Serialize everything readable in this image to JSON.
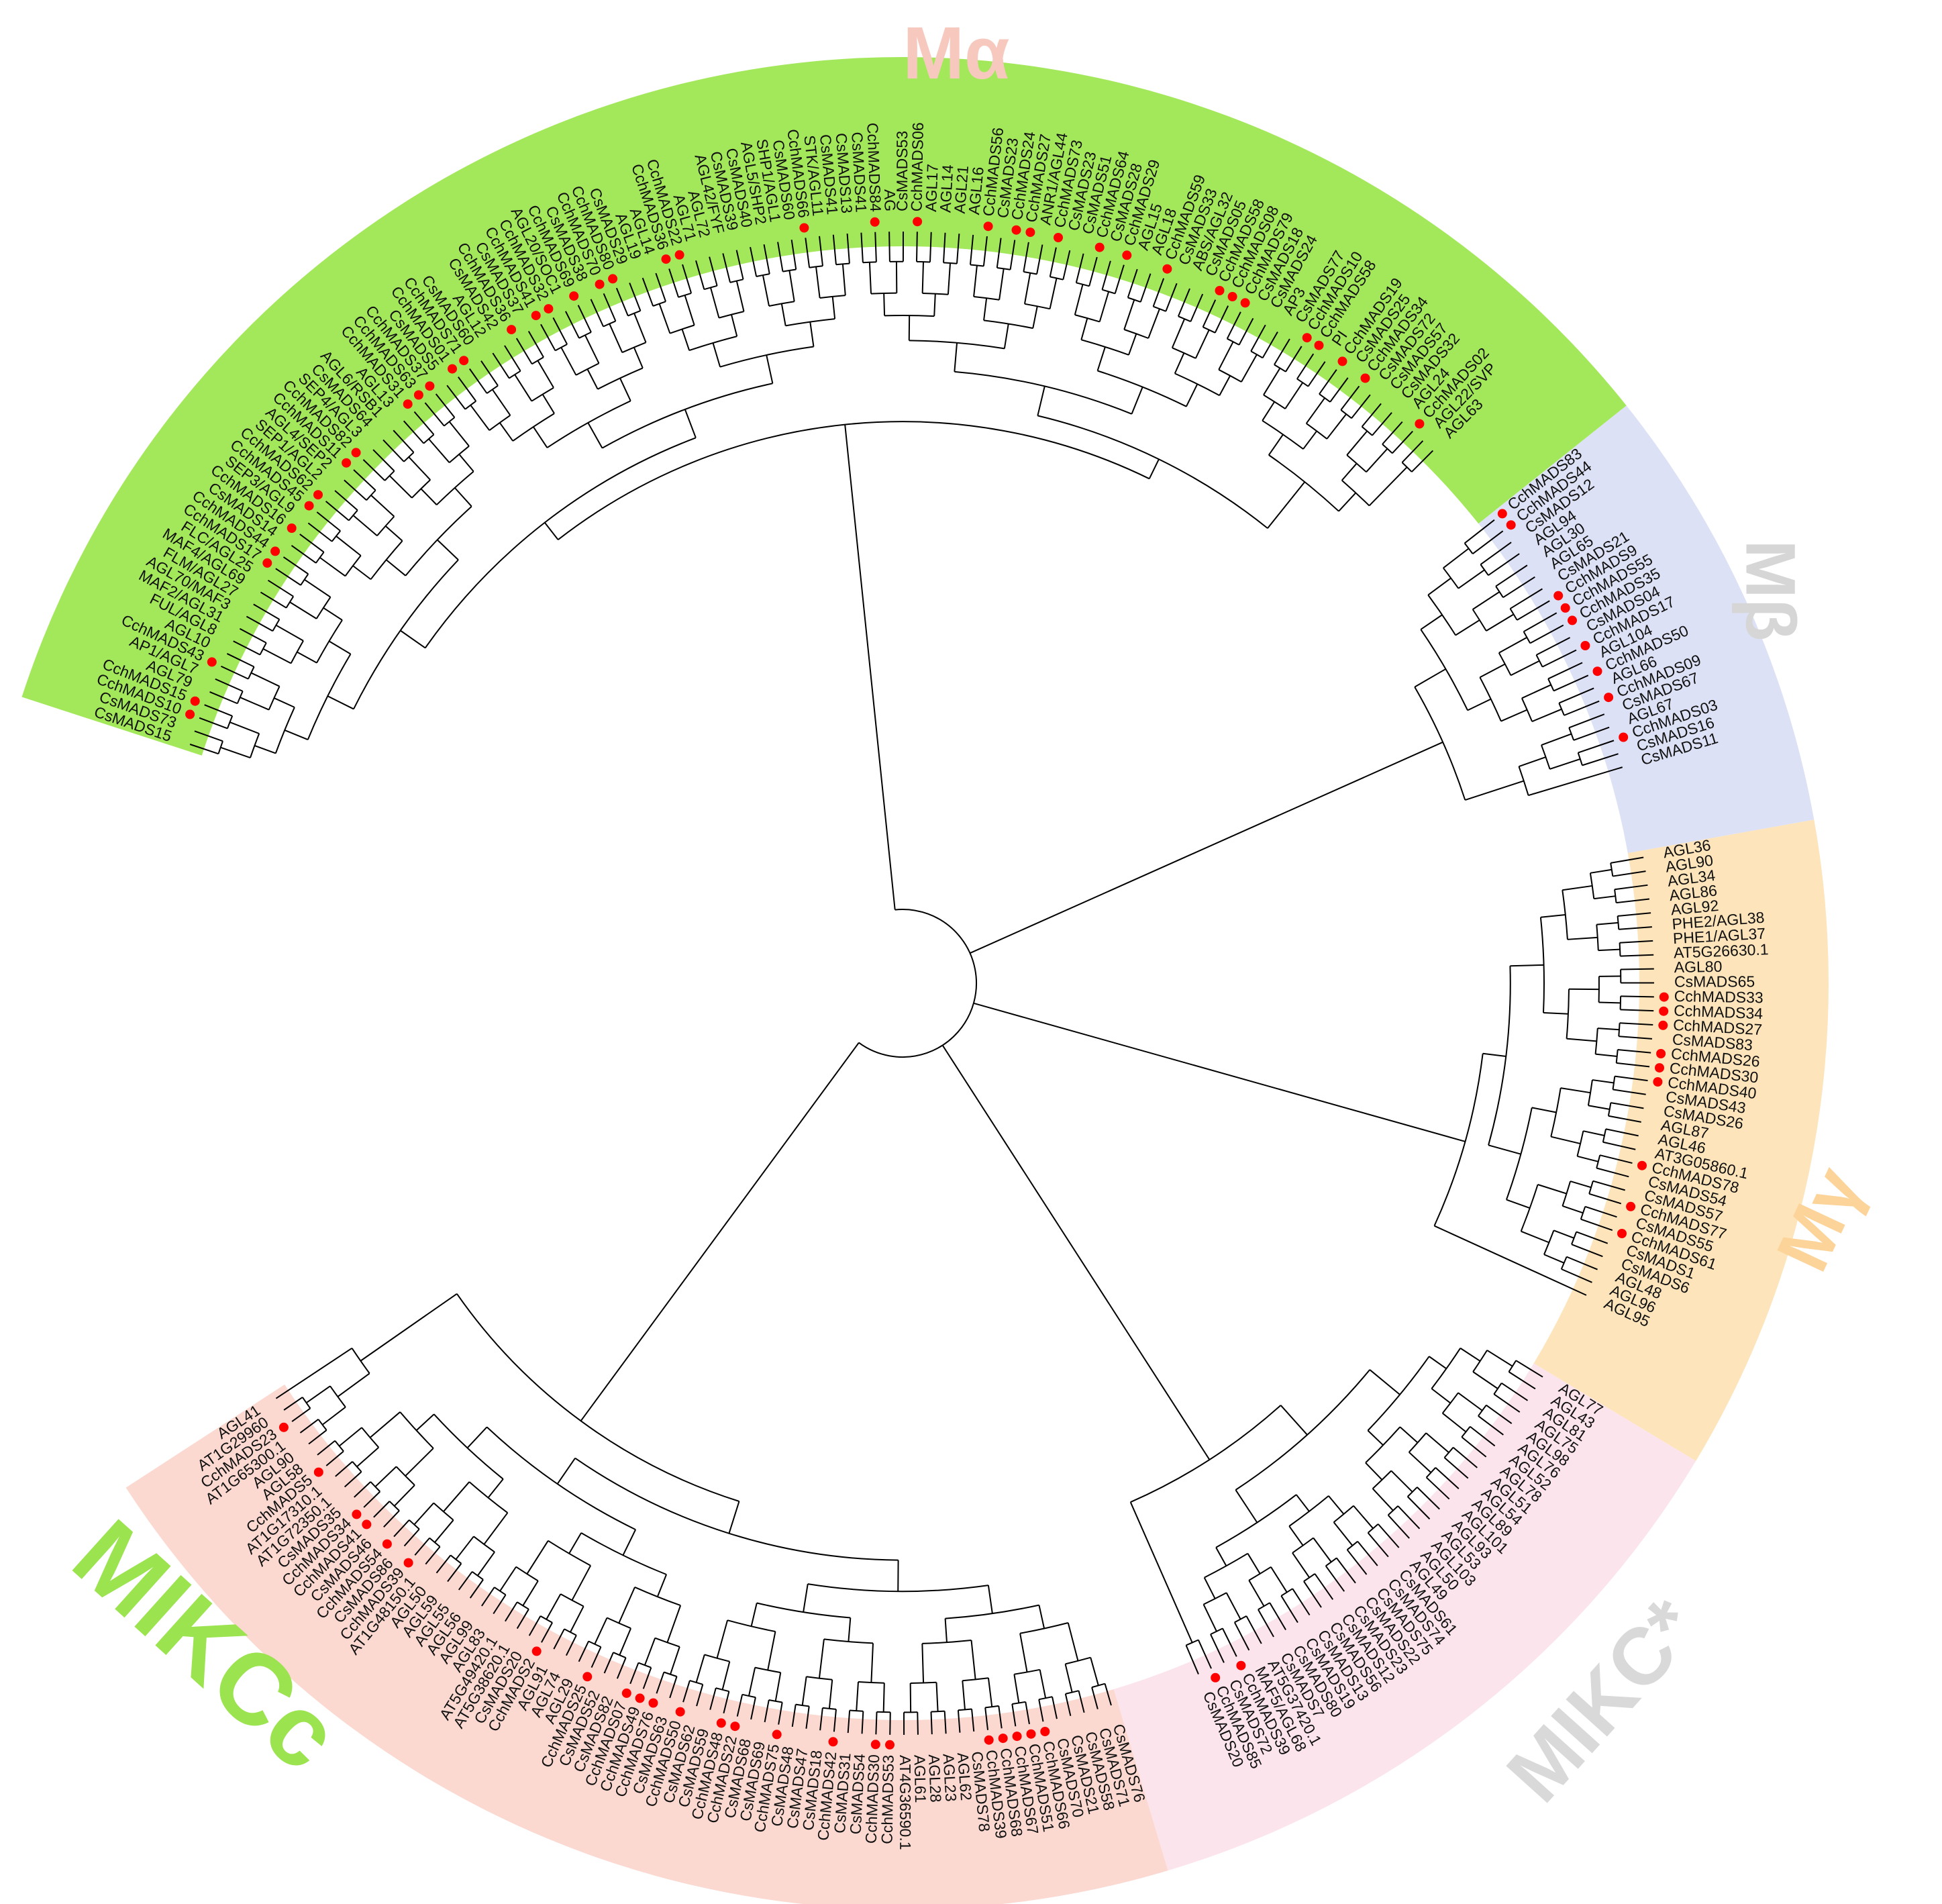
{
  "groups": [
    {
      "id": "Ma",
      "label": "Mα",
      "color": "#fbd8d0",
      "label_color": "#f7c8be"
    },
    {
      "id": "Mb",
      "label": "Mβ",
      "color": "#fce4ec",
      "label_color": "#d6d6d6"
    },
    {
      "id": "Mg",
      "label": "Mγ",
      "color": "#fde4bb",
      "label_color": "#fcd49a"
    },
    {
      "id": "MIKCs",
      "label": "MIKC*",
      "color": "#dde1f5",
      "label_color": "#d9d9d9"
    },
    {
      "id": "MIKCc",
      "label": "MIKCc",
      "color": "#a3e85a",
      "label_color": "#9be34f"
    }
  ],
  "sections": [
    {
      "group": "MIKCc",
      "leaves": [
        "CsMADS15",
        "CsMADS73",
        "CchMADS10",
        "CchMADS15",
        "AGL79",
        "AP1/AGL7",
        "CchMADS43",
        "AGL10",
        "FUL/AGL8",
        "MAF2/AGL31",
        "AGL70/MAF3",
        "FLM/AGL27",
        "MAF4/AGL69",
        "FLC/AGL25",
        "CchMADS17",
        "CchMADS44",
        "CsMADS14",
        "CchMADS16",
        "SEP3/AGL9",
        "CchMADS45",
        "CchMADS62",
        "SEP1/AGL2",
        "AGL4/SEP2",
        "CchMADS11",
        "CchMADS82",
        "SEP4/AGL3",
        "CsMADS64",
        "AGL6/RSB1",
        "AGL13",
        "CchMADS31",
        "CchMADS63",
        "CchMADS37",
        "CsMADS5",
        "CchMADS01",
        "CchMADS71",
        "CsMADS60",
        "AGL12",
        "CsMADS42",
        "CchMADS36",
        "CsMADS37",
        "CchMADS41",
        "CchMADS32",
        "AGL20/SOC1",
        "CchMADS69",
        "CsMADS38",
        "CchMADS70",
        "CchMADS80",
        "CsMADS29",
        "AGL19",
        "AGL14",
        "CchMADS36",
        "CchMADS22",
        "AGL71",
        "AGL72",
        "AGL42/FYF",
        "CsMADS39",
        "CsMADS40",
        "AGL5/SHP2",
        "SHP1/AGL1",
        "CsMADS60",
        "CchMADS66",
        "STK/AGL11",
        "CsMADS41",
        "CsMADS13",
        "CsMADS41",
        "CchMADS84",
        "AG",
        "CsMADS53",
        "CchMADS06",
        "AGL17",
        "AGL14",
        "AGL21",
        "AGL16",
        "CchMADS56",
        "CsMADS23",
        "CchMADS24",
        "CchMADS27",
        "ANR1/AGL44",
        "CchMADS73",
        "CsMADS23",
        "CsMADS51",
        "CchMADS64",
        "CsMADS28",
        "CchMADS29",
        "AGL15",
        "AGL18",
        "CchMADS59",
        "CsMADS33",
        "ABS/AGL32",
        "CsMADS05",
        "CchMADS58",
        "CchMADS08",
        "CchMADS79",
        "CsMADS18",
        "CsMADS24",
        "AP3",
        "CsMADS77",
        "CchMADS10",
        "CchMADS58",
        "PI",
        "CchMADS19",
        "CsMADS25",
        "CchMADS34",
        "CsMADS72",
        "CsMADS57",
        "CsMADS32",
        "AGL24",
        "CchMADS02",
        "AGL22/SVP",
        "AGL63"
      ]
    },
    {
      "group": "MIKCs",
      "leaves": [
        "CchMADS83",
        "CchMADS44",
        "CsMADS12",
        "AGL94",
        "AGL30",
        "AGL65",
        "CsMADS21",
        "CchMADS9",
        "CchMADS55",
        "CchMADS35",
        "CsMADS04",
        "CchMADS17",
        "AGL104",
        "CchMADS50",
        "AGL66",
        "CchMADS09",
        "CsMADS67",
        "AGL67",
        "CchMADS03",
        "CsMADS16",
        "CsMADS11"
      ]
    },
    {
      "group": "Mg",
      "leaves": [
        "AGL36",
        "AGL90",
        "AGL34",
        "AGL86",
        "AGL92",
        "PHE2/AGL38",
        "PHE1/AGL37",
        "AT5G26630.1",
        "AGL80",
        "CsMADS65",
        "CchMADS33",
        "CchMADS34",
        "CchMADS27",
        "CsMADS83",
        "CchMADS26",
        "CchMADS30",
        "CchMADS40",
        "CsMADS43",
        "CsMADS26",
        "AGL87",
        "AGL46",
        "AT3G05860.1",
        "CchMADS78",
        "CsMADS54",
        "CsMADS57",
        "CchMADS77",
        "CsMADS55",
        "CchMADS61",
        "CsMADS1",
        "CsMADS6",
        "AGL48",
        "AGL96",
        "AGL95"
      ]
    },
    {
      "group": "Mb",
      "leaves": [
        "AGL77",
        "AGL43",
        "AGL81",
        "AGL75",
        "AGL98",
        "AGL76",
        "AGL52",
        "AGL78",
        "AGL51",
        "AGL54",
        "AGL89",
        "AGL101",
        "AGL93",
        "AGL53",
        "AGL103",
        "AGL50",
        "AGL49",
        "CsMADS61",
        "CsMADS74",
        "CsMADS75",
        "CsMADS22",
        "CsMADS23",
        "CsMADS12",
        "CsMADS56",
        "CsMADS13",
        "CsMADS19",
        "CsMADS80",
        "CsMADS7",
        "AT5G37420.1",
        "MAF5/AGL68",
        "CchMADS39",
        "CsMADS72",
        "CchMADS85",
        "CsMADS20"
      ]
    },
    {
      "group": "Ma",
      "leaves": [
        "CsMADS76",
        "CsMADS71",
        "CsMADS58",
        "CsMADS21",
        "CsMADS70",
        "CchMADS66",
        "CchMADS51",
        "CchMADS67",
        "CchMADS68",
        "CchMADS39",
        "CsMADS78",
        "AGL62",
        "AGL23",
        "AGL28",
        "AGL61",
        "AT4G36590.1",
        "CchMADS53",
        "CchMADS30",
        "CsMADS54",
        "CsMADS31",
        "CchMADS42",
        "CsMADS18",
        "CsMADS47",
        "CsMADS48",
        "CchMADS75",
        "CsMADS69",
        "CsMADS68",
        "CchMADS22",
        "CchMADS48",
        "CsMADS59",
        "CsMADS62",
        "CchMADS50",
        "CsMADS63",
        "CchMADS76",
        "CchMADS49",
        "CchMADS07",
        "CsMADS82",
        "CsMADS52",
        "CchMADS25",
        "AGL29",
        "AGL74",
        "AGL91",
        "CchMADS2",
        "CsMADS20",
        "AT5G38620.1",
        "AT5G49420.1",
        "AGL83",
        "AGL99",
        "AGL56",
        "AGL55",
        "AGL59",
        "AGL50",
        "AT1G48150.1",
        "CchMADS39",
        "CsMADS86",
        "CchMADS54",
        "CsMADS46",
        "CchMADS41",
        "CchMADS34",
        "CsMADS35",
        "AT1G72350.1",
        "AT1G17310.1",
        "CchMADS5",
        "AGL58",
        "AGL90",
        "AT1G65300.1",
        "CchMADS23",
        "AT1G29960",
        "AGL41"
      ]
    }
  ],
  "red_marked": [
    "CchMADS10",
    "CchMADS15",
    "CchMADS43",
    "CchMADS17",
    "CchMADS44",
    "CchMADS16",
    "CchMADS45",
    "CchMADS62",
    "CchMADS11",
    "CchMADS82",
    "CchMADS31",
    "CchMADS63",
    "CchMADS37",
    "CchMADS01",
    "CchMADS71",
    "CchMADS36",
    "CchMADS41",
    "CchMADS32",
    "CchMADS69",
    "CchMADS70",
    "CchMADS80",
    "CchMADS22",
    "CchMADS66",
    "CchMADS84",
    "CchMADS06",
    "CchMADS56",
    "CchMADS24",
    "CchMADS27",
    "CchMADS73",
    "CchMADS64",
    "CchMADS29",
    "CchMADS59",
    "CchMADS58",
    "CchMADS08",
    "CchMADS79",
    "CchMADS19",
    "CchMADS34",
    "CchMADS02",
    "CchMADS83",
    "CchMADS9",
    "CchMADS55",
    "CchMADS35",
    "CchMADS50",
    "CchMADS09",
    "CchMADS03",
    "CchMADS33",
    "CchMADS26",
    "CchMADS30",
    "CchMADS40",
    "CchMADS78",
    "CchMADS77",
    "CchMADS61",
    "CchMADS39",
    "CchMADS85",
    "CchMADS51",
    "CchMADS67",
    "CchMADS68",
    "CchMADS53",
    "CchMADS42",
    "CchMADS75",
    "CchMADS48",
    "CchMADS76",
    "CchMADS49",
    "CchMADS07",
    "CchMADS25",
    "CchMADS2",
    "CchMADS54",
    "CchMADS5",
    "CchMADS23"
  ],
  "colors": {
    "branch": "#000000",
    "marker": "#ff0000",
    "text": "#111111"
  }
}
